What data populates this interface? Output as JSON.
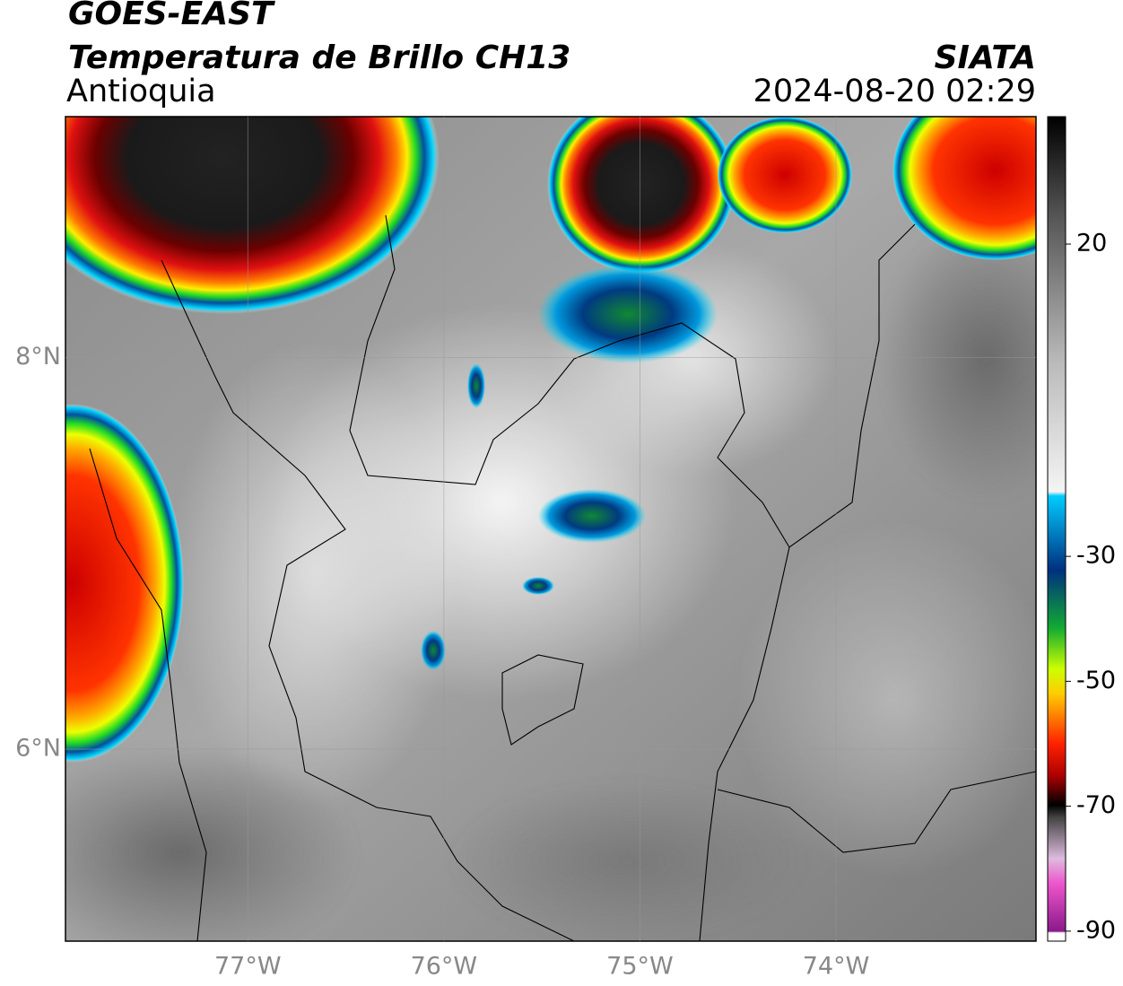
{
  "header": {
    "satellite": "GOES-EAST",
    "title": "Temperatura de Brillo CH13",
    "agency": "SIATA",
    "region": "Antioquia",
    "datetime": "2024-08-20 02:29"
  },
  "map": {
    "xlim": [
      -77.93,
      -72.98
    ],
    "ylim": [
      5.02,
      9.23
    ],
    "xticks": [
      {
        "value": -77,
        "label": "77°W"
      },
      {
        "value": -76,
        "label": "76°W"
      },
      {
        "value": -75,
        "label": "75°W"
      },
      {
        "value": -74,
        "label": "74°W"
      }
    ],
    "yticks": [
      {
        "value": 8,
        "label": "8°N"
      },
      {
        "value": 6,
        "label": "6°N"
      }
    ],
    "grid": true
  },
  "colorbar": {
    "lim": [
      -91.6,
      40.4
    ],
    "ticks": [
      20,
      -30,
      -50,
      -70,
      -90
    ]
  }
}
